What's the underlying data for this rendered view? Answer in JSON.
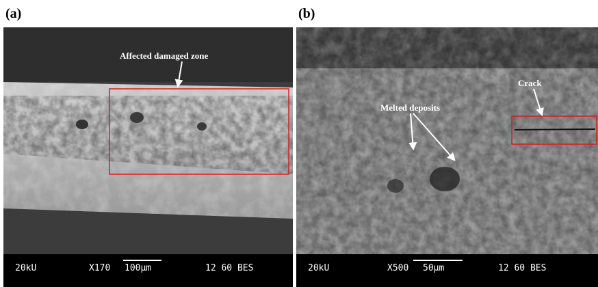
{
  "panels": [
    {
      "label": "(a)",
      "annotations": [
        "Affected damaged zone"
      ],
      "info_bar": {
        "voltage": "20kU",
        "magnification": "X170",
        "scale": "100μm",
        "code": "12 60 BES"
      }
    },
    {
      "label": "(b)",
      "annotations": [
        "Melted deposits",
        "Crack"
      ],
      "info_bar": {
        "voltage": "20kU",
        "magnification": "X500",
        "scale": "50μm",
        "code": "12 60 BES"
      }
    }
  ]
}
